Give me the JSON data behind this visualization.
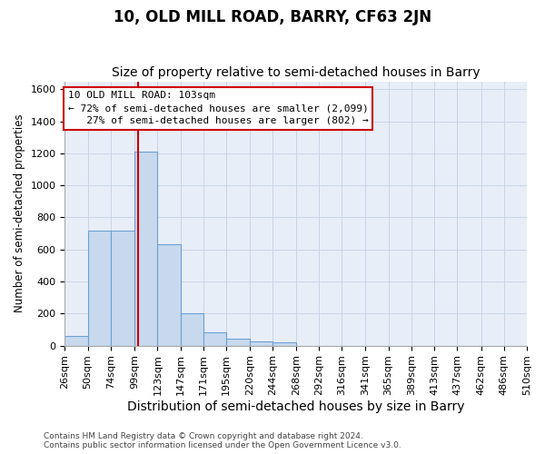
{
  "title": "10, OLD MILL ROAD, BARRY, CF63 2JN",
  "subtitle": "Size of property relative to semi-detached houses in Barry",
  "xlabel": "Distribution of semi-detached houses by size in Barry",
  "ylabel": "Number of semi-detached properties",
  "bar_edges": [
    26,
    50,
    74,
    99,
    123,
    147,
    171,
    195,
    220,
    244,
    268,
    292,
    316,
    341,
    365,
    389,
    413,
    437,
    462,
    486,
    510
  ],
  "bar_heights": [
    60,
    720,
    720,
    1210,
    630,
    200,
    80,
    45,
    25,
    20,
    0,
    0,
    0,
    0,
    0,
    0,
    0,
    0,
    0,
    0
  ],
  "bar_color": "#c8d9ee",
  "bar_edge_color": "#6b9fd4",
  "property_size": 103,
  "annotation_line1": "10 OLD MILL ROAD: 103sqm",
  "annotation_line2": "← 72% of semi-detached houses are smaller (2,099)",
  "annotation_line3": "   27% of semi-detached houses are larger (802) →",
  "annotation_box_color": "white",
  "annotation_box_edge_color": "#cc0000",
  "vline_color": "#cc0000",
  "grid_color": "#c8d4e8",
  "background_color": "#e8eef8",
  "ylim": [
    0,
    1650
  ],
  "yticks": [
    0,
    200,
    400,
    600,
    800,
    1000,
    1200,
    1400,
    1600
  ],
  "footnote": "Contains HM Land Registry data © Crown copyright and database right 2024.\nContains public sector information licensed under the Open Government Licence v3.0.",
  "title_fontsize": 12,
  "subtitle_fontsize": 10,
  "xlabel_fontsize": 10,
  "ylabel_fontsize": 8.5,
  "tick_fontsize": 8,
  "annotation_fontsize": 8,
  "footnote_fontsize": 6.5
}
